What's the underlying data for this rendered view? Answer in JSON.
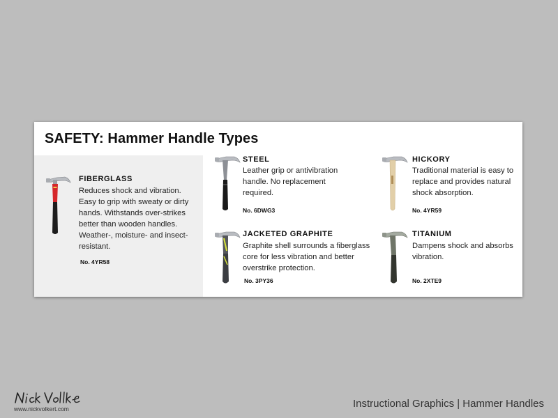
{
  "card": {
    "title": "SAFETY: Hammer Handle Types"
  },
  "items": [
    {
      "name": "FIBERGLASS",
      "description": "Reduces shock and vibration. Easy to grip with sweaty or dirty hands. Withstands over-strikes better than wooden handles. Weather-, moisture- and insect-resistant.",
      "number": "No. 4YR58",
      "icon": "fiberglass-hammer-icon",
      "handle_color": "#d6262a",
      "grip_color": "#1c1c1c"
    },
    {
      "name": "STEEL",
      "description": "Leather grip or antivibration handle. No replacement required.",
      "number": "No. 6DWG3",
      "icon": "steel-hammer-icon",
      "handle_color": "#8d9096",
      "grip_color": "#1a1a1a"
    },
    {
      "name": "HICKORY",
      "description": "Traditional material is easy to replace and provides natural shock absorption.",
      "number": "No. 4YR59",
      "icon": "hickory-hammer-icon",
      "handle_color": "#e2cfa8",
      "grip_color": "#e2cfa8"
    },
    {
      "name": "JACKETED GRAPHITE",
      "description": "Graphite shell surrounds a fiberglass core for less vibration and better overstrike protection.",
      "number": "No. 3PY36",
      "icon": "graphite-hammer-icon",
      "handle_color": "#55575d",
      "grip_color": "#3b3d42",
      "accent_color": "#d9e63a"
    },
    {
      "name": "TITANIUM",
      "description": "Dampens shock and absorbs vibration.",
      "number": "No. 2XTE9",
      "icon": "titanium-hammer-icon",
      "handle_color": "#6f7568",
      "grip_color": "#33362f"
    }
  ],
  "footer": {
    "signature": "Nick Volkert",
    "url": "www.nickvolkert.com",
    "caption": "Instructional Graphics | Hammer Handles"
  }
}
